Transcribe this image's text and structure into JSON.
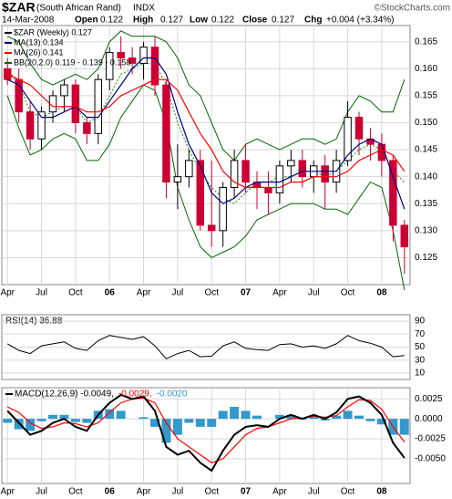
{
  "chart_data": [
    {
      "type": "candlestick",
      "title": "$ZAR",
      "subtitle": "(South African Rand)",
      "exchange": "INDX",
      "credit": "©StockCharts.com",
      "date": "14-Mar-2008",
      "quote": [
        {
          "label": "Open",
          "value": 0.122
        },
        {
          "label": "High",
          "value": 0.127
        },
        {
          "label": "Low",
          "value": 0.122
        },
        {
          "label": "Close",
          "value": 0.127
        },
        {
          "label": "Chg",
          "value": "+0.004 (+3.34%)"
        }
      ],
      "legend_label": "$ZAR (Weekly) 0.127",
      "categories": [
        "Apr",
        null,
        null,
        "Jul",
        null,
        null,
        "Oct",
        null,
        null,
        "06",
        null,
        null,
        "Apr",
        null,
        null,
        "Jul",
        null,
        null,
        "Oct",
        null,
        null,
        "07",
        null,
        null,
        "Apr",
        null,
        null,
        "Jul",
        null,
        null,
        "Oct",
        null,
        null,
        "08",
        null,
        null
      ],
      "open": [
        0.16,
        0.158,
        0.152,
        0.147,
        0.152,
        0.155,
        0.157,
        0.15,
        0.148,
        0.158,
        0.163,
        0.162,
        0.161,
        0.164,
        0.157,
        0.139,
        0.14,
        0.143,
        0.131,
        0.13,
        0.138,
        0.143,
        0.139,
        0.138,
        0.137,
        0.142,
        0.143,
        0.14,
        0.142,
        0.139,
        0.143,
        0.151,
        0.147,
        0.146,
        0.143,
        0.131
      ],
      "high": [
        0.162,
        0.16,
        0.154,
        0.153,
        0.156,
        0.158,
        0.158,
        0.151,
        0.159,
        0.164,
        0.166,
        0.164,
        0.165,
        0.166,
        0.158,
        0.146,
        0.145,
        0.145,
        0.143,
        0.139,
        0.145,
        0.146,
        0.141,
        0.141,
        0.143,
        0.145,
        0.145,
        0.143,
        0.144,
        0.145,
        0.154,
        0.152,
        0.149,
        0.148,
        0.144,
        0.132
      ],
      "low": [
        0.157,
        0.15,
        0.145,
        0.145,
        0.15,
        0.152,
        0.148,
        0.146,
        0.146,
        0.156,
        0.16,
        0.159,
        0.158,
        0.155,
        0.136,
        0.134,
        0.138,
        0.13,
        0.127,
        0.127,
        0.136,
        0.137,
        0.134,
        0.133,
        0.135,
        0.139,
        0.138,
        0.137,
        0.134,
        0.137,
        0.142,
        0.144,
        0.143,
        0.14,
        0.128,
        0.122
      ],
      "close": [
        0.158,
        0.152,
        0.147,
        0.152,
        0.155,
        0.157,
        0.15,
        0.148,
        0.158,
        0.163,
        0.162,
        0.161,
        0.164,
        0.157,
        0.139,
        0.14,
        0.143,
        0.131,
        0.13,
        0.138,
        0.143,
        0.139,
        0.138,
        0.137,
        0.142,
        0.143,
        0.14,
        0.142,
        0.139,
        0.143,
        0.151,
        0.147,
        0.146,
        0.143,
        0.131,
        0.127
      ],
      "up_color": "#000000",
      "down_color": "#cc0033",
      "overlays": [
        {
          "name": "MA(13) 0.134",
          "color": "#000080",
          "values": [
            0.158,
            0.157,
            0.154,
            0.151,
            0.151,
            0.152,
            0.153,
            0.151,
            0.151,
            0.154,
            0.157,
            0.16,
            0.162,
            0.162,
            0.159,
            0.152,
            0.146,
            0.142,
            0.137,
            0.135,
            0.136,
            0.138,
            0.139,
            0.139,
            0.139,
            0.14,
            0.141,
            0.141,
            0.141,
            0.141,
            0.144,
            0.146,
            0.147,
            0.146,
            0.14,
            0.134
          ]
        },
        {
          "name": "MA(26) 0.141",
          "color": "#ff0000",
          "values": [
            0.159,
            0.158,
            0.157,
            0.155,
            0.153,
            0.153,
            0.153,
            0.152,
            0.152,
            0.153,
            0.155,
            0.156,
            0.157,
            0.158,
            0.158,
            0.156,
            0.152,
            0.148,
            0.145,
            0.141,
            0.139,
            0.138,
            0.138,
            0.138,
            0.138,
            0.139,
            0.139,
            0.14,
            0.14,
            0.14,
            0.141,
            0.143,
            0.144,
            0.145,
            0.144,
            0.141
          ]
        }
      ],
      "bands": {
        "name": "BB(20,2.0) 0.119 - 0.139 - 0.158",
        "color": "#006600",
        "middle_color": "#009900",
        "upper": [
          0.166,
          0.165,
          0.161,
          0.158,
          0.157,
          0.158,
          0.159,
          0.158,
          0.16,
          0.165,
          0.167,
          0.166,
          0.166,
          0.166,
          0.165,
          0.162,
          0.157,
          0.155,
          0.15,
          0.145,
          0.143,
          0.146,
          0.147,
          0.146,
          0.145,
          0.146,
          0.147,
          0.147,
          0.146,
          0.147,
          0.152,
          0.155,
          0.154,
          0.152,
          0.152,
          0.158
        ],
        "middle": [
          0.16,
          0.157,
          0.152,
          0.151,
          0.152,
          0.153,
          0.153,
          0.15,
          0.151,
          0.155,
          0.159,
          0.16,
          0.161,
          0.161,
          0.157,
          0.15,
          0.145,
          0.141,
          0.138,
          0.136,
          0.135,
          0.137,
          0.139,
          0.139,
          0.14,
          0.14,
          0.141,
          0.141,
          0.14,
          0.141,
          0.143,
          0.145,
          0.146,
          0.145,
          0.141,
          0.139
        ],
        "lower": [
          0.155,
          0.149,
          0.144,
          0.145,
          0.147,
          0.148,
          0.147,
          0.143,
          0.143,
          0.146,
          0.151,
          0.154,
          0.157,
          0.156,
          0.15,
          0.138,
          0.132,
          0.127,
          0.125,
          0.126,
          0.127,
          0.129,
          0.132,
          0.133,
          0.134,
          0.135,
          0.135,
          0.135,
          0.134,
          0.134,
          0.133,
          0.136,
          0.139,
          0.138,
          0.13,
          0.119
        ]
      },
      "ylim": [
        0.12,
        0.168
      ],
      "yticks": [
        0.125,
        {
          "value": 0.13,
          "label": "0.130"
        },
        0.135,
        {
          "value": 0.14,
          "label": "0.140"
        },
        0.145,
        {
          "value": 0.15,
          "label": "0.150"
        },
        0.155,
        {
          "value": 0.16,
          "label": "0.160"
        },
        0.165
      ],
      "grid": true
    },
    {
      "type": "line",
      "title": "RSI(14) 36.88",
      "color": "#000000",
      "values": [
        55,
        45,
        40,
        52,
        55,
        58,
        48,
        45,
        60,
        68,
        65,
        62,
        66,
        52,
        32,
        40,
        45,
        35,
        36,
        52,
        58,
        48,
        46,
        45,
        54,
        55,
        50,
        52,
        48,
        55,
        68,
        60,
        56,
        50,
        35,
        37
      ],
      "ylim": [
        0,
        100
      ],
      "yticks": [
        10,
        30,
        50,
        70,
        90
      ],
      "grid": true
    },
    {
      "type": "macd",
      "categories": [
        "Apr",
        null,
        null,
        "Jul",
        null,
        null,
        "Oct",
        null,
        null,
        "06",
        null,
        null,
        "Apr",
        null,
        null,
        "Jul",
        null,
        null,
        "Oct",
        null,
        null,
        "07",
        null,
        null,
        "Apr",
        null,
        null,
        "Jul",
        null,
        null,
        "Oct",
        null,
        null,
        "08",
        null,
        null
      ],
      "series": [
        {
          "name": "MACD(12,26,9) -0.0049,",
          "color": "#000000",
          "values": [
            0.001,
            -0.0005,
            -0.002,
            -0.0015,
            -0.0005,
            0.0,
            -0.001,
            -0.0015,
            0.0005,
            0.002,
            0.003,
            0.0025,
            0.0028,
            0.001,
            -0.0035,
            -0.0045,
            -0.004,
            -0.0055,
            -0.0065,
            -0.004,
            -0.002,
            -0.001,
            -0.0008,
            -0.001,
            0.0,
            0.0005,
            0.0,
            0.0005,
            0.0,
            0.0008,
            0.0025,
            0.0028,
            0.002,
            0.0005,
            -0.003,
            -0.0049
          ]
        },
        {
          "name": "-0.0029,",
          "color": "#ff0000",
          "values": [
            0.0015,
            0.0008,
            -0.0005,
            -0.0012,
            -0.001,
            -0.0005,
            -0.0006,
            -0.001,
            -0.0005,
            0.0008,
            0.002,
            0.0025,
            0.0026,
            0.002,
            -0.0005,
            -0.0025,
            -0.0035,
            -0.0045,
            -0.0055,
            -0.005,
            -0.0035,
            -0.002,
            -0.0012,
            -0.001,
            -0.0005,
            0.0,
            0.0001,
            0.0003,
            0.0002,
            0.0004,
            0.0015,
            0.0024,
            0.0023,
            0.0012,
            -0.001,
            -0.0029
          ]
        },
        {
          "name": "-0.0020",
          "color": "#3399cc",
          "values": [
            -0.0005,
            -0.0013,
            -0.0015,
            -0.0003,
            0.0005,
            0.0005,
            -0.0004,
            -0.0005,
            0.001,
            0.0012,
            0.001,
            0.0,
            0.0002,
            -0.001,
            -0.003,
            -0.002,
            -0.0005,
            -0.001,
            -0.001,
            0.001,
            0.0015,
            0.001,
            0.0004,
            0.0,
            0.0005,
            0.0005,
            -0.0001,
            0.0002,
            -0.0002,
            0.0004,
            0.001,
            0.0004,
            -0.0003,
            -0.0007,
            -0.002,
            -0.002
          ]
        }
      ],
      "ylim": [
        -0.0081,
        0.0039
      ],
      "yticks": [
        0.0025,
        {
          "value": 0,
          "label": "0.0000"
        },
        -0.0025,
        {
          "value": -0.005,
          "label": "-0.0050"
        }
      ],
      "grid": true
    }
  ]
}
